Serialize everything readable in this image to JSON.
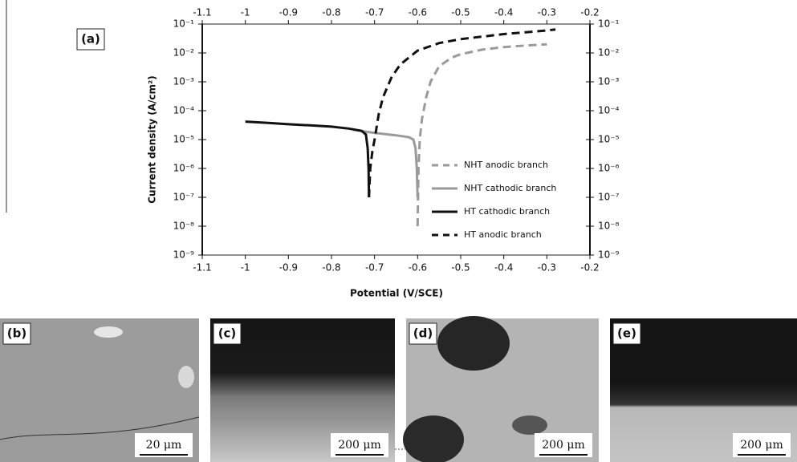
{
  "chart_data": {
    "type": "line",
    "annotation": "(a)",
    "xlabel": "Potential (V/SCE)",
    "ylabel": "Current density (A/cm²)",
    "xlim": [
      -1.1,
      -0.2
    ],
    "xticks": [
      -1.1,
      -1,
      -0.9,
      -0.8,
      -0.7,
      -0.6,
      -0.5,
      -0.4,
      -0.3,
      -0.2
    ],
    "ylim": [
      1e-09,
      0.1
    ],
    "ylog": true,
    "yticks": [
      {
        "value": 1e-09,
        "label": "10⁻⁹"
      },
      {
        "value": 1e-08,
        "label": "10⁻⁸"
      },
      {
        "value": 1e-07,
        "label": "10⁻⁷"
      },
      {
        "value": 1e-06,
        "label": "10⁻⁶"
      },
      {
        "value": 1e-05,
        "label": "10⁻⁵"
      },
      {
        "value": 0.0001,
        "label": "10⁻⁴"
      },
      {
        "value": 0.001,
        "label": "10⁻³"
      },
      {
        "value": 0.01,
        "label": "10⁻²"
      },
      {
        "value": 0.1,
        "label": "10⁻¹"
      }
    ],
    "grid": false,
    "legend": "lower right",
    "series": [
      {
        "name": "NHT anodic branch",
        "color": "#9a9a9a",
        "linestyle": "dashed",
        "x": [
          -0.6,
          -0.598,
          -0.595,
          -0.59,
          -0.58,
          -0.57,
          -0.55,
          -0.52,
          -0.5,
          -0.45,
          -0.4,
          -0.35,
          -0.3
        ],
        "values": [
          1e-08,
          1e-06,
          1e-05,
          5e-05,
          0.0003,
          0.001,
          0.0035,
          0.007,
          0.009,
          0.013,
          0.016,
          0.018,
          0.02
        ]
      },
      {
        "name": "NHT cathodic branch",
        "color": "#9a9a9a",
        "linestyle": "solid",
        "x": [
          -0.75,
          -0.7,
          -0.65,
          -0.62,
          -0.61,
          -0.605,
          -0.602,
          -0.6
        ],
        "values": [
          2.2e-05,
          1.7e-05,
          1.4e-05,
          1.2e-05,
          1e-05,
          5e-06,
          1e-06,
          1e-07
        ]
      },
      {
        "name": "HT cathodic branch",
        "color": "#111111",
        "linestyle": "solid",
        "x": [
          -1,
          -0.95,
          -0.9,
          -0.85,
          -0.8,
          -0.76,
          -0.73,
          -0.72,
          -0.716,
          -0.714,
          -0.713
        ],
        "values": [
          4.2e-05,
          3.8e-05,
          3.4e-05,
          3.1e-05,
          2.8e-05,
          2.4e-05,
          2e-05,
          1.5e-05,
          5e-06,
          1e-06,
          1e-07
        ]
      },
      {
        "name": "HT anodic branch",
        "color": "#111111",
        "linestyle": "dashed",
        "x": [
          -0.713,
          -0.71,
          -0.705,
          -0.7,
          -0.69,
          -0.68,
          -0.66,
          -0.64,
          -0.6,
          -0.55,
          -0.5,
          -0.4,
          -0.3,
          -0.28
        ],
        "values": [
          1e-07,
          1e-06,
          4e-06,
          1e-05,
          8e-05,
          0.0003,
          0.0015,
          0.004,
          0.012,
          0.022,
          0.03,
          0.045,
          0.06,
          0.065
        ]
      }
    ]
  },
  "panels": [
    {
      "label": "(b)",
      "scale_bar": "20 μm"
    },
    {
      "label": "(c)",
      "scale_bar": "200 μm"
    },
    {
      "label": "(d)",
      "scale_bar": "200 μm"
    },
    {
      "label": "(e)",
      "scale_bar": "200 μm"
    }
  ]
}
